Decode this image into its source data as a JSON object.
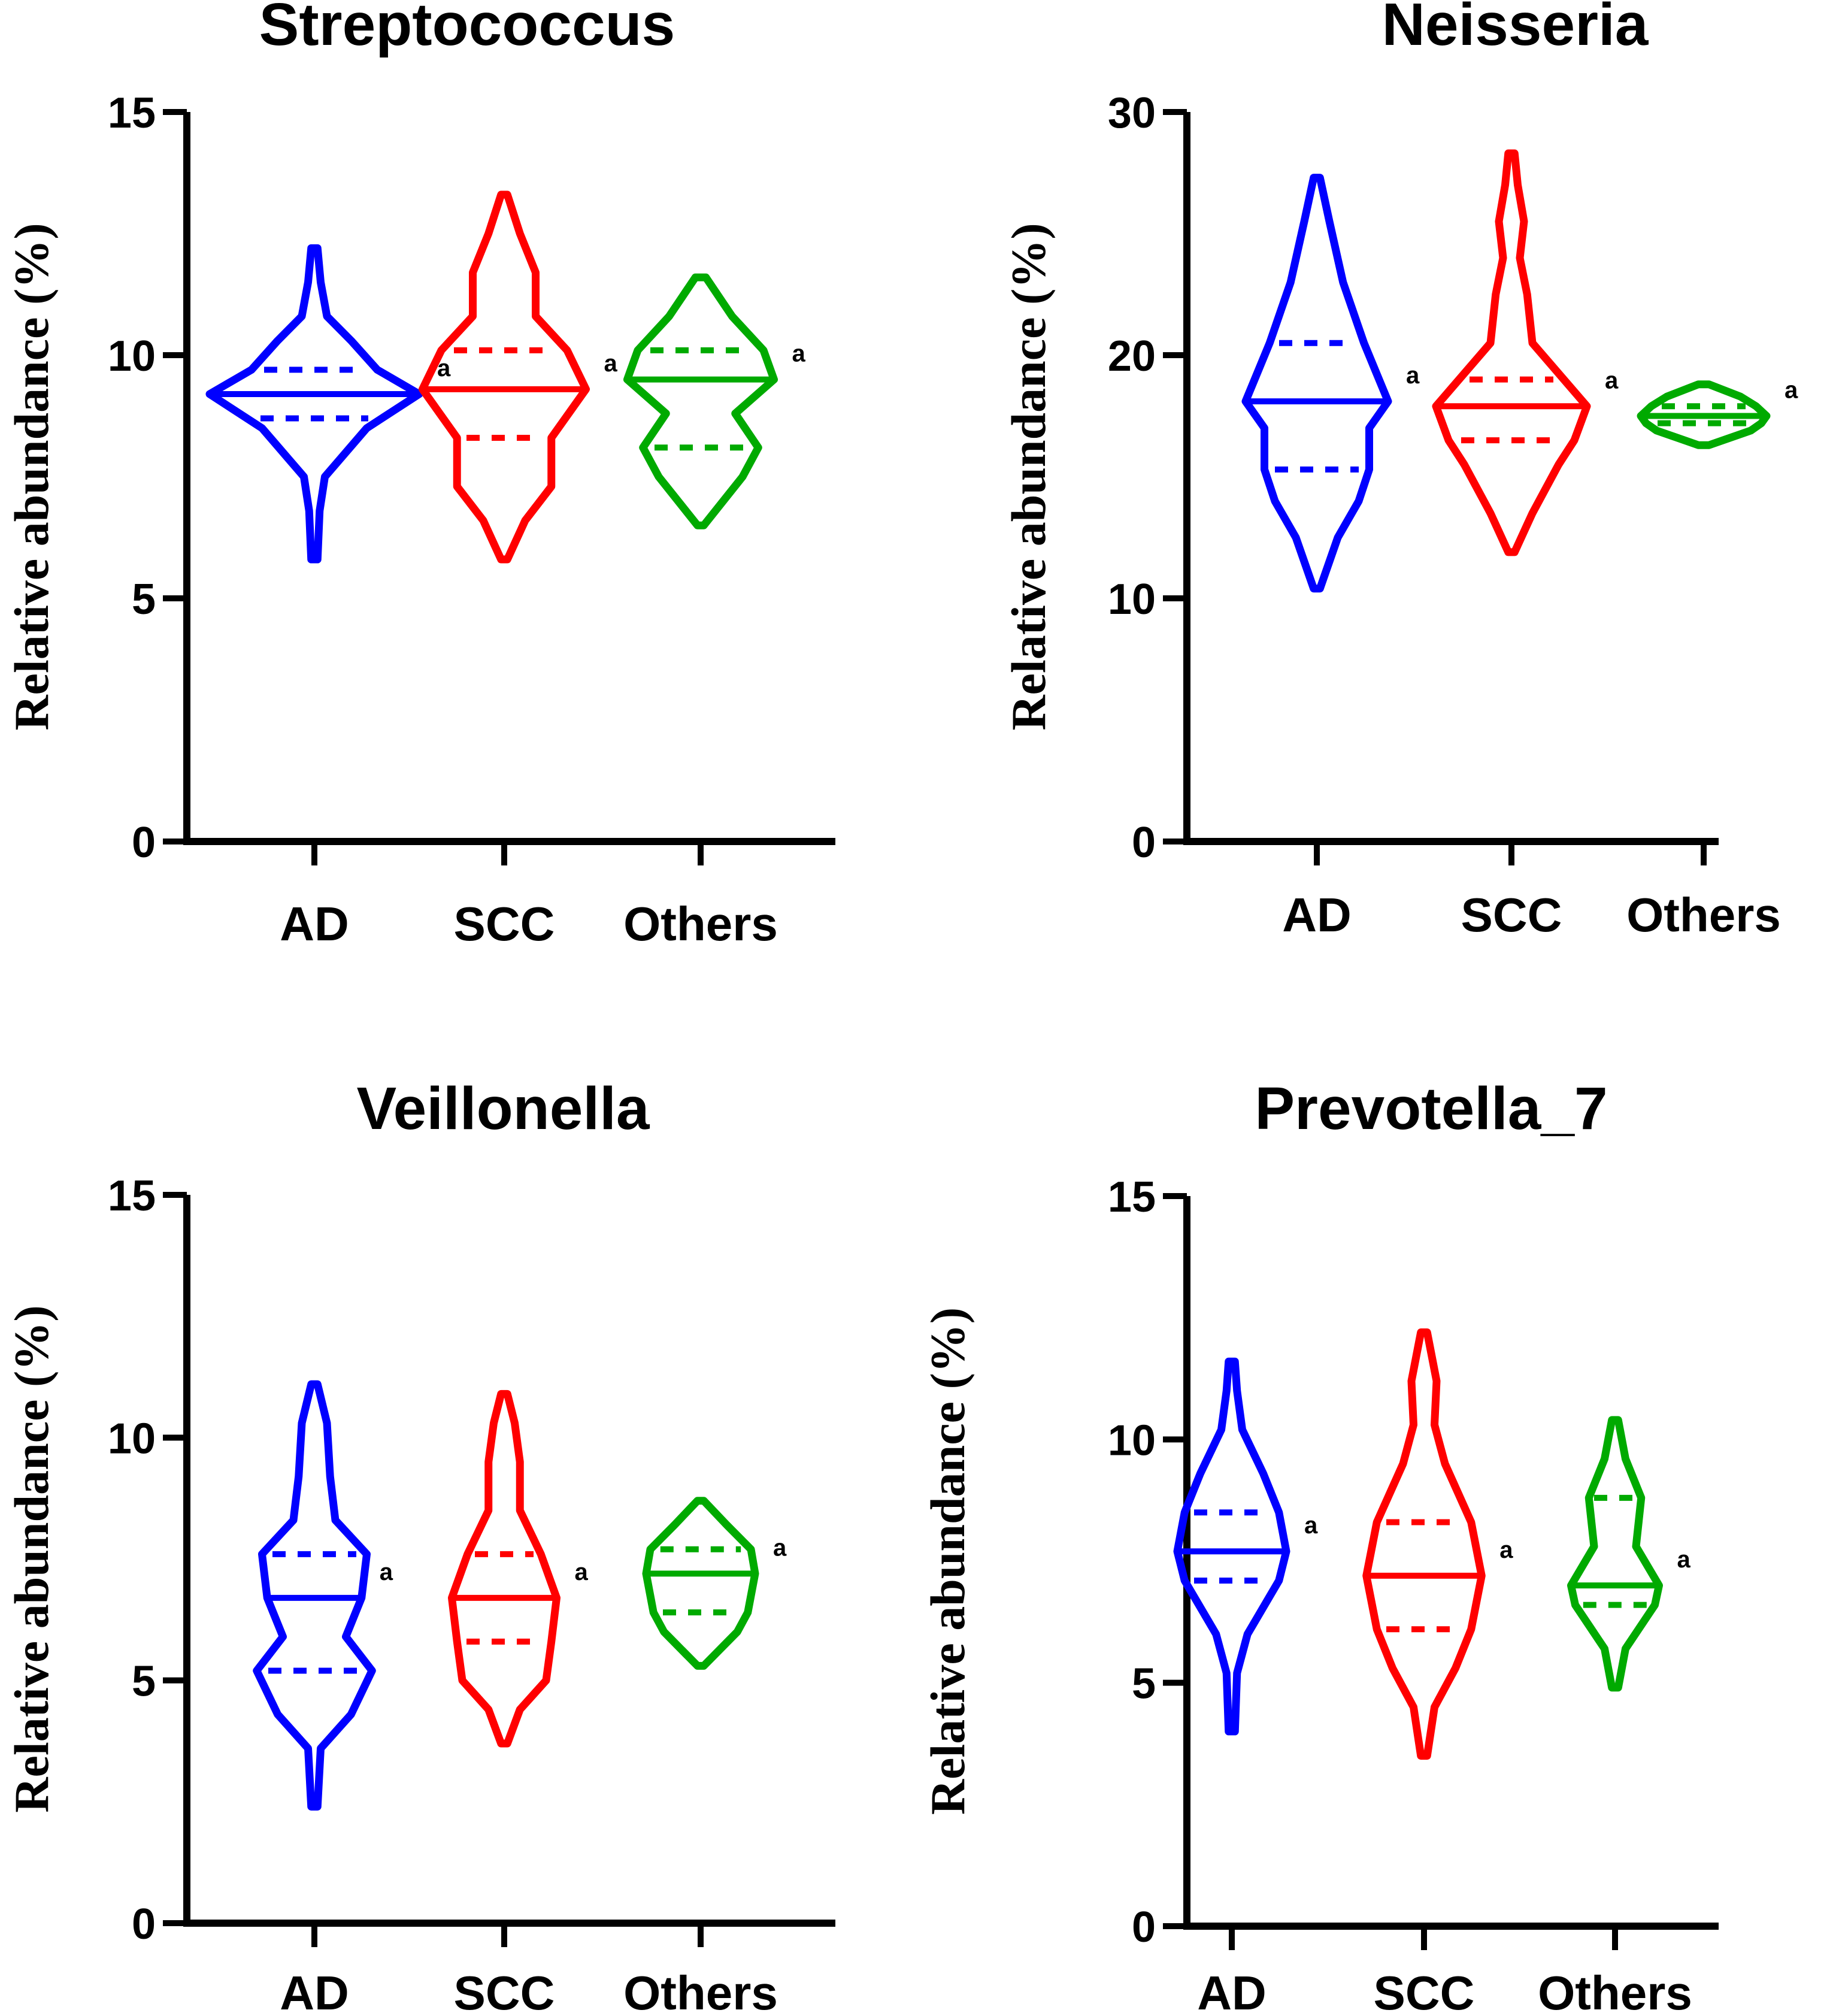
{
  "chart_data": [
    {
      "type": "violin",
      "title": "Streptococcus",
      "xlabel": "",
      "ylabel": "Relative abundance (%)",
      "ylim": [
        0,
        15
      ],
      "yticks": [
        0,
        5,
        10,
        15
      ],
      "categories": [
        "AD",
        "SCC",
        "Others"
      ],
      "groups": [
        {
          "name": "AD",
          "color": "#0000ff",
          "min": 5.8,
          "max": 12.2,
          "q1": 8.7,
          "median": 9.2,
          "q3": 9.7,
          "label": "a",
          "profile": [
            [
              5.8,
              0.03
            ],
            [
              6.8,
              0.05
            ],
            [
              7.5,
              0.1
            ],
            [
              8.0,
              0.3
            ],
            [
              8.5,
              0.5
            ],
            [
              9.2,
              1.0
            ],
            [
              9.7,
              0.6
            ],
            [
              10.3,
              0.35
            ],
            [
              10.8,
              0.12
            ],
            [
              11.5,
              0.06
            ],
            [
              12.2,
              0.03
            ]
          ]
        },
        {
          "name": "SCC",
          "color": "#ff0000",
          "min": 5.8,
          "max": 13.3,
          "q1": 8.3,
          "median": 9.3,
          "q3": 10.1,
          "label": "a",
          "profile": [
            [
              5.8,
              0.03
            ],
            [
              6.6,
              0.2
            ],
            [
              7.3,
              0.45
            ],
            [
              8.3,
              0.45
            ],
            [
              9.3,
              0.78
            ],
            [
              10.1,
              0.6
            ],
            [
              10.8,
              0.3
            ],
            [
              11.7,
              0.3
            ],
            [
              12.5,
              0.15
            ],
            [
              13.3,
              0.03
            ]
          ]
        },
        {
          "name": "Others",
          "color": "#00aa00",
          "min": 6.5,
          "max": 11.6,
          "q1": 8.1,
          "median": 9.5,
          "q3": 10.1,
          "label": "a",
          "profile": [
            [
              6.5,
              0.03
            ],
            [
              7.5,
              0.4
            ],
            [
              8.1,
              0.55
            ],
            [
              8.8,
              0.33
            ],
            [
              9.5,
              0.7
            ],
            [
              10.1,
              0.6
            ],
            [
              10.8,
              0.3
            ],
            [
              11.6,
              0.05
            ]
          ]
        }
      ]
    },
    {
      "type": "violin",
      "title": "Neisseria",
      "xlabel": "",
      "ylabel": "Relative abundance (%)",
      "ylim": [
        0,
        30
      ],
      "yticks": [
        0,
        10,
        20,
        30
      ],
      "categories": [
        "AD",
        "SCC",
        "Others"
      ],
      "groups": [
        {
          "name": "AD",
          "color": "#0000ff",
          "min": 10.4,
          "max": 27.3,
          "q1": 15.3,
          "median": 18.1,
          "q3": 20.5,
          "label": "a",
          "profile": [
            [
              10.4,
              0.03
            ],
            [
              12.5,
              0.2
            ],
            [
              14.0,
              0.4
            ],
            [
              15.3,
              0.5
            ],
            [
              17.0,
              0.5
            ],
            [
              18.1,
              0.68
            ],
            [
              20.5,
              0.45
            ],
            [
              23.0,
              0.25
            ],
            [
              25.5,
              0.12
            ],
            [
              27.3,
              0.03
            ]
          ]
        },
        {
          "name": "SCC",
          "color": "#ff0000",
          "min": 11.9,
          "max": 28.3,
          "q1": 16.5,
          "median": 17.9,
          "q3": 19.0,
          "label": "a",
          "profile": [
            [
              11.9,
              0.03
            ],
            [
              13.5,
              0.2
            ],
            [
              15.5,
              0.45
            ],
            [
              16.5,
              0.6
            ],
            [
              17.9,
              0.72
            ],
            [
              19.0,
              0.5
            ],
            [
              20.5,
              0.2
            ],
            [
              22.5,
              0.15
            ],
            [
              24.0,
              0.08
            ],
            [
              25.5,
              0.12
            ],
            [
              27.0,
              0.06
            ],
            [
              28.3,
              0.03
            ]
          ]
        },
        {
          "name": "Others",
          "color": "#00aa00",
          "min": 16.3,
          "max": 18.8,
          "q1": 17.2,
          "median": 17.5,
          "q3": 17.9,
          "label": "a",
          "profile": [
            [
              16.3,
              0.05
            ],
            [
              16.9,
              0.45
            ],
            [
              17.2,
              0.55
            ],
            [
              17.5,
              0.6
            ],
            [
              17.9,
              0.5
            ],
            [
              18.3,
              0.35
            ],
            [
              18.8,
              0.05
            ]
          ]
        }
      ]
    },
    {
      "type": "violin",
      "title": "Veillonella",
      "xlabel": "",
      "ylabel": "Relative abundance (%)",
      "ylim": [
        0,
        15
      ],
      "yticks": [
        0,
        5,
        10,
        15
      ],
      "categories": [
        "AD",
        "SCC",
        "Others"
      ],
      "groups": [
        {
          "name": "AD",
          "color": "#0000ff",
          "min": 2.4,
          "max": 11.1,
          "q1": 5.2,
          "median": 6.7,
          "q3": 7.6,
          "label": "a",
          "profile": [
            [
              2.4,
              0.03
            ],
            [
              3.6,
              0.06
            ],
            [
              4.3,
              0.35
            ],
            [
              5.2,
              0.55
            ],
            [
              5.9,
              0.3
            ],
            [
              6.7,
              0.45
            ],
            [
              7.6,
              0.5
            ],
            [
              8.3,
              0.2
            ],
            [
              9.2,
              0.15
            ],
            [
              10.3,
              0.12
            ],
            [
              11.1,
              0.03
            ]
          ]
        },
        {
          "name": "SCC",
          "color": "#ff0000",
          "min": 3.7,
          "max": 10.9,
          "q1": 5.8,
          "median": 6.7,
          "q3": 7.6,
          "label": "a",
          "profile": [
            [
              3.7,
              0.03
            ],
            [
              4.4,
              0.15
            ],
            [
              5.0,
              0.4
            ],
            [
              5.8,
              0.45
            ],
            [
              6.7,
              0.5
            ],
            [
              7.6,
              0.35
            ],
            [
              8.5,
              0.15
            ],
            [
              9.5,
              0.15
            ],
            [
              10.3,
              0.1
            ],
            [
              10.9,
              0.03
            ]
          ]
        },
        {
          "name": "Others",
          "color": "#00aa00",
          "min": 5.3,
          "max": 8.7,
          "q1": 6.4,
          "median": 7.2,
          "q3": 7.7,
          "label": "a",
          "profile": [
            [
              5.3,
              0.03
            ],
            [
              6.0,
              0.35
            ],
            [
              6.4,
              0.45
            ],
            [
              7.2,
              0.52
            ],
            [
              7.7,
              0.48
            ],
            [
              8.2,
              0.25
            ],
            [
              8.7,
              0.03
            ]
          ]
        }
      ]
    },
    {
      "type": "violin",
      "title": "Prevotella_7",
      "xlabel": "",
      "ylabel": "Relative abundance (%)",
      "ylim": [
        0,
        15
      ],
      "yticks": [
        0,
        5,
        10,
        15
      ],
      "categories": [
        "AD",
        "SCC",
        "Others"
      ],
      "groups": [
        {
          "name": "AD",
          "color": "#0000ff",
          "min": 4.0,
          "max": 11.6,
          "q1": 7.1,
          "median": 7.7,
          "q3": 8.5,
          "label": "a",
          "profile": [
            [
              4.0,
              0.03
            ],
            [
              5.2,
              0.05
            ],
            [
              6.0,
              0.15
            ],
            [
              7.1,
              0.45
            ],
            [
              7.7,
              0.52
            ],
            [
              8.5,
              0.45
            ],
            [
              9.3,
              0.3
            ],
            [
              10.2,
              0.1
            ],
            [
              11.0,
              0.05
            ],
            [
              11.6,
              0.03
            ]
          ]
        },
        {
          "name": "SCC",
          "color": "#ff0000",
          "min": 3.5,
          "max": 12.2,
          "q1": 6.1,
          "median": 7.2,
          "q3": 8.3,
          "label": "a",
          "profile": [
            [
              3.5,
              0.03
            ],
            [
              4.5,
              0.1
            ],
            [
              5.3,
              0.3
            ],
            [
              6.1,
              0.45
            ],
            [
              7.2,
              0.55
            ],
            [
              8.3,
              0.45
            ],
            [
              9.5,
              0.2
            ],
            [
              10.3,
              0.1
            ],
            [
              11.2,
              0.12
            ],
            [
              12.2,
              0.03
            ]
          ]
        },
        {
          "name": "Others",
          "color": "#00aa00",
          "min": 4.9,
          "max": 10.4,
          "q1": 6.6,
          "median": 7.0,
          "q3": 8.8,
          "label": "a",
          "profile": [
            [
              4.9,
              0.03
            ],
            [
              5.7,
              0.1
            ],
            [
              6.6,
              0.38
            ],
            [
              7.0,
              0.42
            ],
            [
              7.8,
              0.2
            ],
            [
              8.8,
              0.25
            ],
            [
              9.6,
              0.1
            ],
            [
              10.4,
              0.03
            ]
          ]
        }
      ]
    }
  ]
}
